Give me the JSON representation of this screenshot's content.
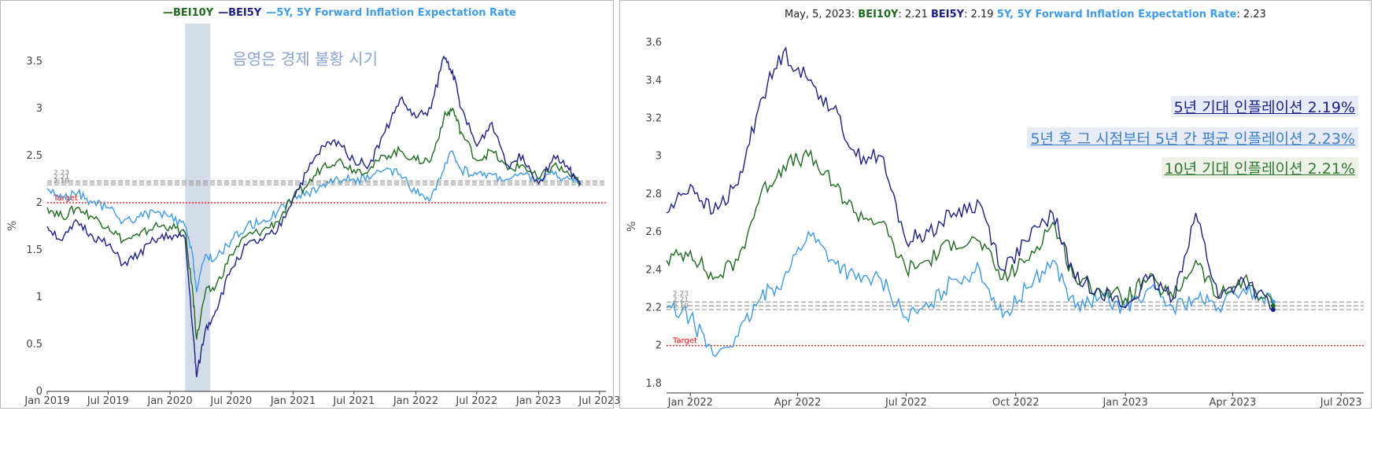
{
  "chart_data": [
    {
      "type": "line",
      "ylabel": "%",
      "ylim": [
        0,
        3.9
      ],
      "yticks": [
        0,
        0.5,
        1,
        1.5,
        2,
        2.5,
        3,
        3.5
      ],
      "ytick_labels": [
        "0",
        "0.5",
        "1",
        "1.5",
        "2",
        "2.5",
        "3",
        "3.5"
      ],
      "xlim": [
        "2019-01-01",
        "2023-07-20"
      ],
      "xticks": [
        "2019-01-01",
        "2019-07-01",
        "2020-01-01",
        "2020-07-01",
        "2021-01-01",
        "2021-07-01",
        "2022-01-01",
        "2022-07-01",
        "2023-01-01",
        "2023-07-01"
      ],
      "xtick_labels": [
        "Jan 2019",
        "Jul 2019",
        "Jan 2020",
        "Jul 2020",
        "Jan 2021",
        "Jul 2021",
        "Jan 2022",
        "Jul 2022",
        "Jan 2023",
        "Jul 2023"
      ],
      "grid": false,
      "legend": "top-center",
      "legend_entries": [
        "BEI10Y",
        "BEI5Y",
        "5Y, 5Y Forward Inflation Expectation Rate"
      ],
      "recession_band": {
        "start": "2020-02-15",
        "end": "2020-04-30",
        "color": "#d4dbe8"
      },
      "recession_label": "음영은 경제 불황 시기",
      "target": {
        "value": 2.0,
        "label": "Target",
        "color": "#ff0000"
      },
      "ref_lines": [
        2.23,
        2.21,
        2.19
      ],
      "ref_labels": [
        "2.23",
        "2.21",
        "2.19"
      ],
      "series": [
        {
          "name": "BEI10Y",
          "color": "#1e6b1e",
          "x": [
            "2019-01-01",
            "2019-02-15",
            "2019-04-01",
            "2019-05-15",
            "2019-07-01",
            "2019-08-15",
            "2019-10-01",
            "2019-11-15",
            "2020-01-01",
            "2020-02-15",
            "2020-03-10",
            "2020-03-20",
            "2020-04-15",
            "2020-05-15",
            "2020-07-01",
            "2020-08-15",
            "2020-10-01",
            "2020-11-15",
            "2021-01-01",
            "2021-02-15",
            "2021-04-01",
            "2021-05-15",
            "2021-07-01",
            "2021-08-15",
            "2021-10-01",
            "2021-11-15",
            "2022-01-01",
            "2022-02-15",
            "2022-03-25",
            "2022-04-20",
            "2022-05-15",
            "2022-07-01",
            "2022-08-15",
            "2022-10-01",
            "2022-11-15",
            "2023-01-01",
            "2023-02-15",
            "2023-04-01",
            "2023-05-05"
          ],
          "y": [
            1.95,
            1.85,
            1.95,
            1.85,
            1.75,
            1.6,
            1.65,
            1.75,
            1.75,
            1.68,
            1.0,
            0.55,
            1.05,
            1.1,
            1.45,
            1.65,
            1.7,
            1.8,
            2.05,
            2.2,
            2.4,
            2.45,
            2.35,
            2.35,
            2.5,
            2.55,
            2.45,
            2.45,
            2.9,
            3.0,
            2.75,
            2.45,
            2.55,
            2.35,
            2.4,
            2.25,
            2.4,
            2.3,
            2.21
          ]
        },
        {
          "name": "BEI5Y",
          "color": "#1c1f8a",
          "x": [
            "2019-01-01",
            "2019-02-15",
            "2019-04-01",
            "2019-05-15",
            "2019-07-01",
            "2019-08-15",
            "2019-10-01",
            "2019-11-15",
            "2020-01-01",
            "2020-02-15",
            "2020-03-10",
            "2020-03-20",
            "2020-04-15",
            "2020-05-15",
            "2020-07-01",
            "2020-08-15",
            "2020-10-01",
            "2020-11-15",
            "2021-01-01",
            "2021-02-15",
            "2021-04-01",
            "2021-05-15",
            "2021-07-01",
            "2021-08-15",
            "2021-10-01",
            "2021-11-15",
            "2022-01-01",
            "2022-02-15",
            "2022-03-25",
            "2022-04-20",
            "2022-05-15",
            "2022-07-01",
            "2022-08-15",
            "2022-10-01",
            "2022-11-15",
            "2023-01-01",
            "2023-02-15",
            "2023-04-01",
            "2023-05-05"
          ],
          "y": [
            1.75,
            1.6,
            1.8,
            1.65,
            1.55,
            1.35,
            1.45,
            1.6,
            1.65,
            1.62,
            0.6,
            0.15,
            0.65,
            0.85,
            1.3,
            1.55,
            1.6,
            1.7,
            2.05,
            2.35,
            2.6,
            2.65,
            2.45,
            2.4,
            2.75,
            3.1,
            2.9,
            3.0,
            3.55,
            3.4,
            3.0,
            2.6,
            2.85,
            2.4,
            2.5,
            2.2,
            2.5,
            2.35,
            2.19
          ]
        },
        {
          "name": "5Y, 5Y Forward Inflation Expectation Rate",
          "color": "#3d9be9",
          "x": [
            "2019-01-01",
            "2019-02-15",
            "2019-04-01",
            "2019-05-15",
            "2019-07-01",
            "2019-08-15",
            "2019-10-01",
            "2019-11-15",
            "2020-01-01",
            "2020-02-15",
            "2020-03-10",
            "2020-03-20",
            "2020-04-15",
            "2020-05-15",
            "2020-07-01",
            "2020-08-15",
            "2020-10-01",
            "2020-11-15",
            "2021-01-01",
            "2021-02-15",
            "2021-04-01",
            "2021-05-15",
            "2021-07-01",
            "2021-08-15",
            "2021-10-01",
            "2021-11-15",
            "2022-01-01",
            "2022-02-15",
            "2022-03-25",
            "2022-04-20",
            "2022-05-15",
            "2022-07-01",
            "2022-08-15",
            "2022-10-01",
            "2022-11-15",
            "2023-01-01",
            "2023-02-15",
            "2023-04-01",
            "2023-05-05"
          ],
          "y": [
            2.15,
            2.05,
            2.1,
            2.0,
            1.95,
            1.8,
            1.85,
            1.9,
            1.85,
            1.75,
            1.4,
            1.05,
            1.45,
            1.4,
            1.6,
            1.75,
            1.8,
            1.9,
            2.05,
            2.1,
            2.2,
            2.25,
            2.25,
            2.25,
            2.35,
            2.3,
            2.1,
            2.05,
            2.35,
            2.55,
            2.35,
            2.3,
            2.3,
            2.25,
            2.3,
            2.25,
            2.3,
            2.25,
            2.23
          ]
        }
      ]
    },
    {
      "type": "line",
      "ylabel": "%",
      "ylim": [
        1.75,
        3.7
      ],
      "yticks": [
        1.8,
        2,
        2.2,
        2.4,
        2.6,
        2.8,
        3,
        3.2,
        3.4,
        3.6
      ],
      "ytick_labels": [
        "1.8",
        "2",
        "2.2",
        "2.4",
        "2.6",
        "2.8",
        "3",
        "3.2",
        "3.4",
        "3.6"
      ],
      "xlim": [
        "2021-12-12",
        "2023-07-20"
      ],
      "xticks": [
        "2022-01-01",
        "2022-04-01",
        "2022-07-01",
        "2022-10-01",
        "2023-01-01",
        "2023-04-01",
        "2023-07-01"
      ],
      "xtick_labels": [
        "Jan 2022",
        "Apr 2022",
        "Jul 2022",
        "Oct 2022",
        "Jan 2023",
        "Apr 2023",
        "Jul 2023"
      ],
      "grid": false,
      "hover": {
        "date": "May, 5, 2023:",
        "items": [
          {
            "name": "BEI10Y",
            "value": "2.21"
          },
          {
            "name": "BEI5Y",
            "value": "2.19"
          },
          {
            "name": "5Y, 5Y Forward Inflation Expectation Rate",
            "value": "2.23"
          }
        ]
      },
      "target": {
        "value": 2.0,
        "label": "Target",
        "color": "#ff0000"
      },
      "ref_lines": [
        2.23,
        2.21,
        2.19
      ],
      "ref_labels": [
        "2.23",
        "2.21",
        "2.19"
      ],
      "annotations": [
        {
          "text": "5년 기대 인플레이션 2.19%",
          "color": "#1c1f8a"
        },
        {
          "text": "5년 후 그 시점부터 5년 간 평균 인플레이션 2.23%",
          "color": "#3d7fc9"
        },
        {
          "text": "10년 기대 인플레이션 2.21%",
          "color": "#2f7a2f"
        }
      ],
      "series": [
        {
          "name": "BEI10Y",
          "color": "#1e6b1e",
          "x": [
            "2021-12-12",
            "2022-01-01",
            "2022-01-20",
            "2022-02-10",
            "2022-03-01",
            "2022-03-20",
            "2022-04-10",
            "2022-05-01",
            "2022-05-20",
            "2022-06-10",
            "2022-07-01",
            "2022-07-20",
            "2022-08-10",
            "2022-09-01",
            "2022-09-20",
            "2022-10-10",
            "2022-11-01",
            "2022-11-20",
            "2022-12-10",
            "2023-01-01",
            "2023-01-20",
            "2023-02-10",
            "2023-03-01",
            "2023-03-20",
            "2023-04-10",
            "2023-05-05"
          ],
          "y": [
            2.45,
            2.5,
            2.35,
            2.45,
            2.8,
            2.95,
            3.0,
            2.85,
            2.7,
            2.65,
            2.4,
            2.45,
            2.55,
            2.55,
            2.35,
            2.45,
            2.65,
            2.35,
            2.3,
            2.25,
            2.35,
            2.25,
            2.45,
            2.25,
            2.35,
            2.21
          ]
        },
        {
          "name": "BEI5Y",
          "color": "#1c1f8a",
          "x": [
            "2021-12-12",
            "2022-01-01",
            "2022-01-20",
            "2022-02-10",
            "2022-03-01",
            "2022-03-20",
            "2022-04-10",
            "2022-05-01",
            "2022-05-20",
            "2022-06-10",
            "2022-07-01",
            "2022-07-20",
            "2022-08-10",
            "2022-09-01",
            "2022-09-20",
            "2022-10-10",
            "2022-11-01",
            "2022-11-20",
            "2022-12-10",
            "2023-01-01",
            "2023-01-20",
            "2023-02-10",
            "2023-03-01",
            "2023-03-20",
            "2023-04-10",
            "2023-05-05"
          ],
          "y": [
            2.7,
            2.85,
            2.7,
            2.85,
            3.3,
            3.55,
            3.4,
            3.25,
            3.0,
            3.0,
            2.55,
            2.6,
            2.7,
            2.75,
            2.4,
            2.55,
            2.7,
            2.35,
            2.3,
            2.2,
            2.35,
            2.25,
            2.7,
            2.25,
            2.35,
            2.19
          ]
        },
        {
          "name": "5Y, 5Y Forward Inflation Expectation Rate",
          "color": "#3d9be9",
          "x": [
            "2021-12-12",
            "2022-01-01",
            "2022-01-20",
            "2022-02-10",
            "2022-03-01",
            "2022-03-20",
            "2022-04-10",
            "2022-05-01",
            "2022-05-20",
            "2022-06-10",
            "2022-07-01",
            "2022-07-20",
            "2022-08-10",
            "2022-09-01",
            "2022-09-20",
            "2022-10-10",
            "2022-11-01",
            "2022-11-20",
            "2022-12-10",
            "2023-01-01",
            "2023-01-20",
            "2023-02-10",
            "2023-03-01",
            "2023-03-20",
            "2023-04-10",
            "2023-05-05"
          ],
          "y": [
            2.2,
            2.15,
            1.95,
            2.05,
            2.25,
            2.35,
            2.6,
            2.45,
            2.35,
            2.35,
            2.15,
            2.2,
            2.35,
            2.4,
            2.15,
            2.3,
            2.45,
            2.2,
            2.25,
            2.2,
            2.3,
            2.2,
            2.25,
            2.2,
            2.3,
            2.23
          ]
        }
      ]
    }
  ]
}
